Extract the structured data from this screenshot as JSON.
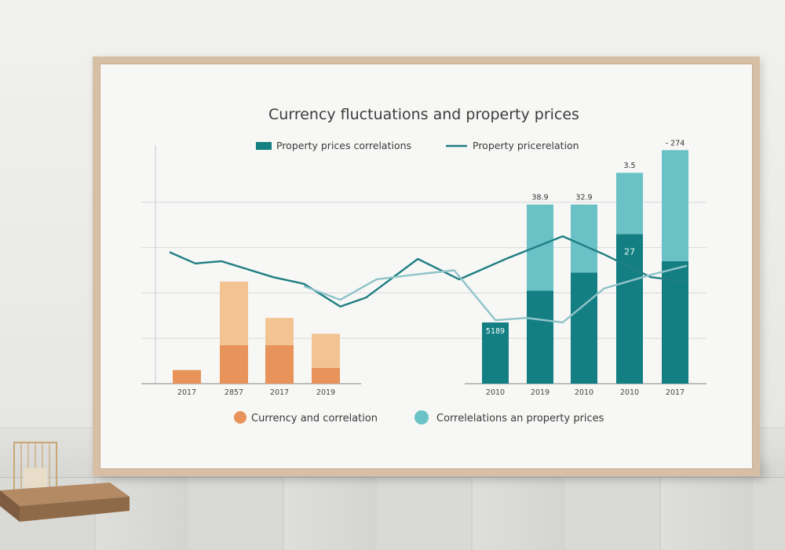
{
  "chart_data": {
    "type": "bar",
    "title": "Currency fluctuations and property prices",
    "legend_top": [
      {
        "label": "Property prices correlations",
        "kind": "bar",
        "color": "#157f82"
      },
      {
        "label": "Property pricerelation",
        "kind": "line",
        "color": "#1f7d80"
      }
    ],
    "legend_bottom": [
      {
        "label": "Currency and correlation",
        "kind": "dot",
        "color": "#e8935a"
      },
      {
        "label": "Correlelations an property prices",
        "kind": "dot",
        "color": "#6bc3c7"
      }
    ],
    "ylim": [
      0,
      100
    ],
    "left_panel": {
      "categories": [
        "2017",
        "2857",
        "2017",
        "2019"
      ],
      "series": [
        {
          "values": [
            6,
            17,
            17,
            7
          ],
          "color": "#e8935a"
        },
        {
          "values": [
            0,
            28,
            12,
            15
          ],
          "color": "#f4c392"
        }
      ]
    },
    "right_panel": {
      "categories": [
        "2010",
        "2019",
        "2010",
        "2010",
        "2017"
      ],
      "series": [
        {
          "values": [
            27,
            41,
            49,
            66,
            54
          ],
          "color": "#137f83"
        },
        {
          "values": [
            0,
            38,
            30,
            27,
            49
          ],
          "color": "#6bc2c6"
        }
      ],
      "bar_labels": [
        "5189",
        "38.9",
        "32.9",
        "3.5",
        "- 274"
      ],
      "inner_labels": [
        "",
        "",
        "",
        "27",
        ""
      ]
    },
    "lines": [
      {
        "color": "#1f7f82",
        "x": [
          0,
          0.05,
          0.1,
          0.2,
          0.26,
          0.33,
          0.38,
          0.48,
          0.56,
          0.65,
          0.76,
          0.84,
          0.93,
          1.0
        ],
        "values": [
          58,
          53,
          54,
          47,
          44,
          34,
          38,
          55,
          46,
          55,
          65,
          57,
          47,
          45
        ]
      },
      {
        "color": "#8fc4c8",
        "x": [
          0.26,
          0.33,
          0.4,
          0.47,
          0.55,
          0.63,
          0.69,
          0.76,
          0.84,
          0.93,
          1.0
        ],
        "values": [
          43,
          37,
          46,
          48,
          50,
          28,
          29,
          27,
          42,
          48,
          52
        ]
      }
    ]
  }
}
